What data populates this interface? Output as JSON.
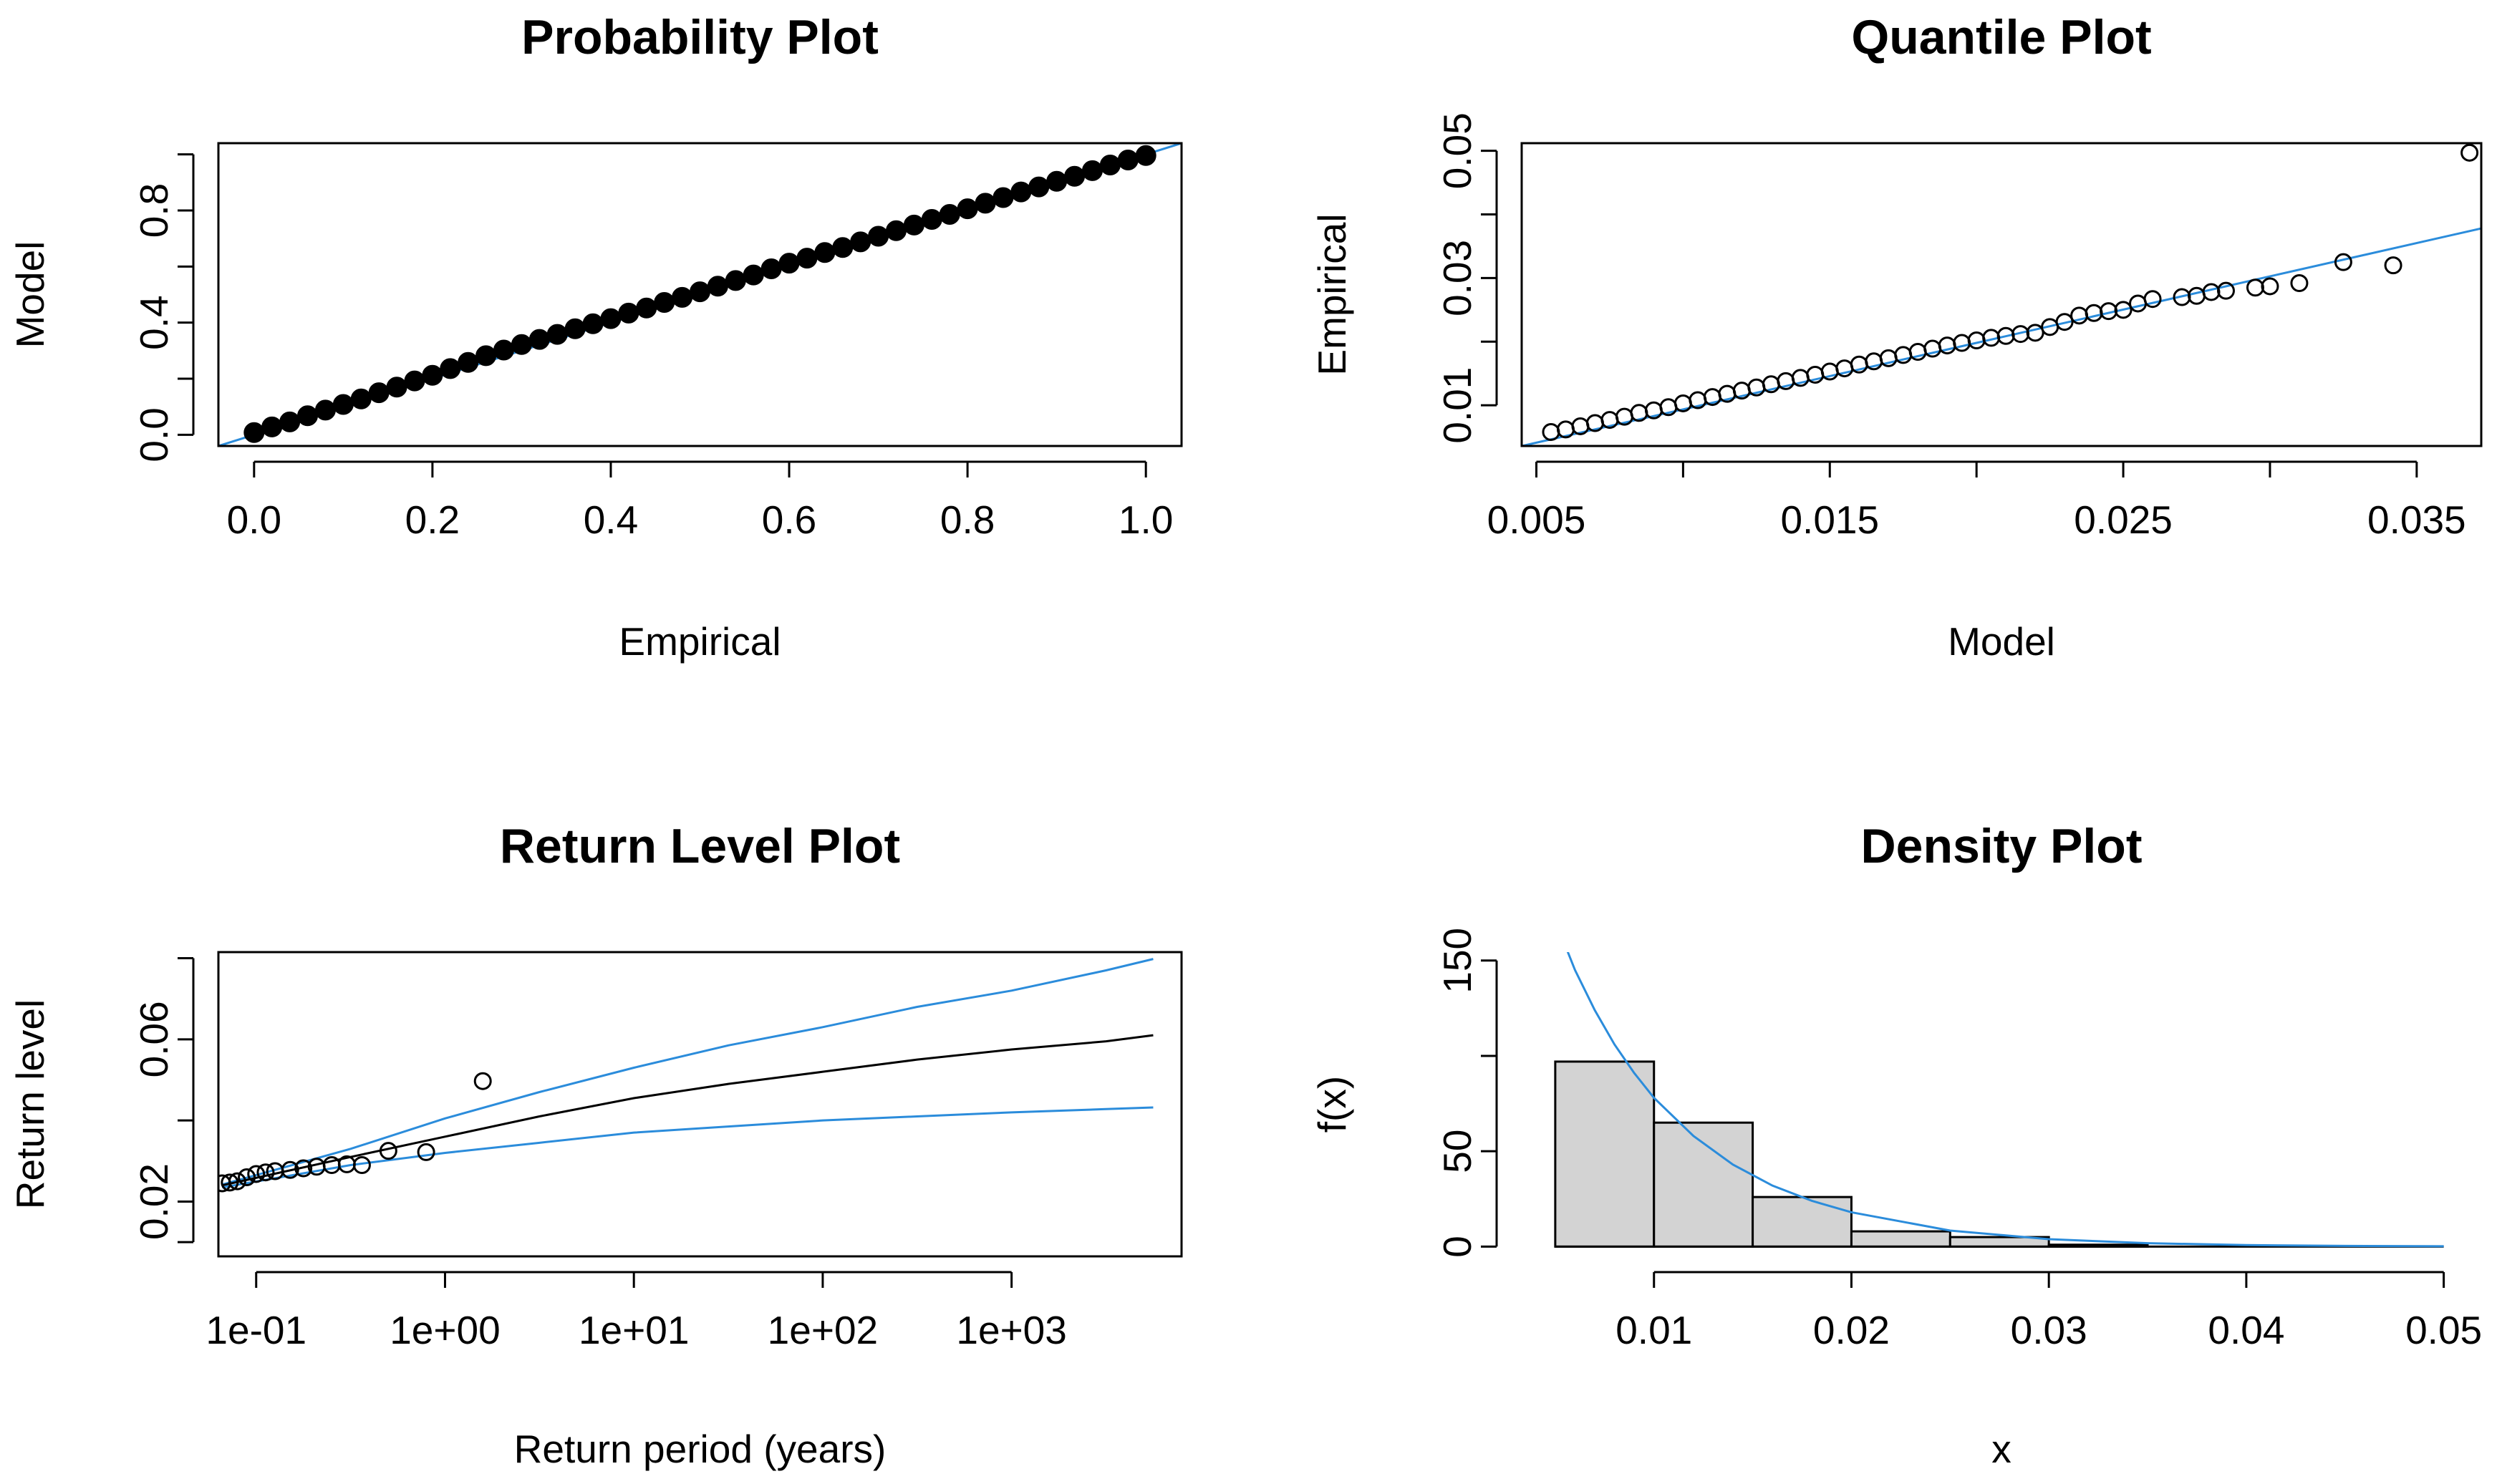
{
  "colors": {
    "fit": "#2b8cdb",
    "points": "#000000",
    "bar_fill": "#d3d3d3",
    "axis": "#000000"
  },
  "chart_data": [
    {
      "id": "prob",
      "type": "scatter",
      "title": "Probability Plot",
      "xlabel": "Empirical",
      "ylabel": "Model",
      "xlim": [
        -0.04,
        1.04
      ],
      "ylim": [
        -0.04,
        1.04
      ],
      "x_ticks": [
        0.0,
        0.2,
        0.4,
        0.6,
        0.8,
        1.0
      ],
      "x_tick_labels": [
        "0.0",
        "0.2",
        "0.4",
        "0.6",
        "0.8",
        "1.0"
      ],
      "y_ticks": [
        0.0,
        0.2,
        0.4,
        0.6,
        0.8,
        1.0
      ],
      "y_tick_labels": [
        "0.0",
        "",
        "0.4",
        "",
        "0.8",
        ""
      ],
      "reference_line": {
        "from": [
          -0.04,
          -0.04
        ],
        "to": [
          1.04,
          1.04
        ]
      },
      "points": [
        [
          0.0,
          0.008
        ],
        [
          0.02,
          0.028
        ],
        [
          0.04,
          0.046
        ],
        [
          0.06,
          0.068
        ],
        [
          0.08,
          0.088
        ],
        [
          0.1,
          0.108
        ],
        [
          0.12,
          0.128
        ],
        [
          0.14,
          0.15
        ],
        [
          0.16,
          0.17
        ],
        [
          0.18,
          0.192
        ],
        [
          0.2,
          0.212
        ],
        [
          0.22,
          0.236
        ],
        [
          0.24,
          0.258
        ],
        [
          0.26,
          0.282
        ],
        [
          0.28,
          0.302
        ],
        [
          0.3,
          0.322
        ],
        [
          0.32,
          0.34
        ],
        [
          0.34,
          0.358
        ],
        [
          0.36,
          0.378
        ],
        [
          0.38,
          0.396
        ],
        [
          0.4,
          0.414
        ],
        [
          0.42,
          0.434
        ],
        [
          0.44,
          0.452
        ],
        [
          0.46,
          0.472
        ],
        [
          0.48,
          0.49
        ],
        [
          0.5,
          0.51
        ],
        [
          0.52,
          0.53
        ],
        [
          0.54,
          0.55
        ],
        [
          0.56,
          0.57
        ],
        [
          0.58,
          0.592
        ],
        [
          0.6,
          0.612
        ],
        [
          0.62,
          0.63
        ],
        [
          0.64,
          0.65
        ],
        [
          0.66,
          0.668
        ],
        [
          0.68,
          0.688
        ],
        [
          0.7,
          0.708
        ],
        [
          0.72,
          0.728
        ],
        [
          0.74,
          0.748
        ],
        [
          0.76,
          0.768
        ],
        [
          0.78,
          0.786
        ],
        [
          0.8,
          0.806
        ],
        [
          0.82,
          0.826
        ],
        [
          0.84,
          0.846
        ],
        [
          0.86,
          0.866
        ],
        [
          0.88,
          0.884
        ],
        [
          0.9,
          0.904
        ],
        [
          0.92,
          0.922
        ],
        [
          0.94,
          0.942
        ],
        [
          0.96,
          0.962
        ],
        [
          0.98,
          0.98
        ],
        [
          1.0,
          0.996
        ]
      ]
    },
    {
      "id": "quant",
      "type": "scatter",
      "title": "Quantile Plot",
      "xlabel": "Model",
      "ylabel": "Empirical",
      "xlim": [
        0.0045,
        0.0372
      ],
      "ylim": [
        0.0036,
        0.0512
      ],
      "x_ticks": [
        0.005,
        0.01,
        0.015,
        0.02,
        0.025,
        0.03,
        0.035
      ],
      "x_tick_labels": [
        "0.005",
        "",
        "0.015",
        "",
        "0.025",
        "",
        "0.035"
      ],
      "y_ticks": [
        0.01,
        0.02,
        0.03,
        0.04,
        0.05
      ],
      "y_tick_labels": [
        "0.01",
        "",
        "0.03",
        "",
        "0.05"
      ],
      "reference_line": {
        "from": [
          0.0045,
          0.0036
        ],
        "to": [
          0.0372,
          0.0378
        ]
      },
      "points": [
        [
          0.0055,
          0.0058
        ],
        [
          0.006,
          0.0062
        ],
        [
          0.0065,
          0.0067
        ],
        [
          0.007,
          0.0072
        ],
        [
          0.0075,
          0.0077
        ],
        [
          0.008,
          0.0082
        ],
        [
          0.0085,
          0.0088
        ],
        [
          0.009,
          0.0092
        ],
        [
          0.0095,
          0.0097
        ],
        [
          0.01,
          0.0103
        ],
        [
          0.0105,
          0.0108
        ],
        [
          0.011,
          0.0113
        ],
        [
          0.0115,
          0.0118
        ],
        [
          0.012,
          0.0123
        ],
        [
          0.0125,
          0.0128
        ],
        [
          0.013,
          0.0133
        ],
        [
          0.0135,
          0.0138
        ],
        [
          0.014,
          0.0143
        ],
        [
          0.0145,
          0.0148
        ],
        [
          0.015,
          0.0153
        ],
        [
          0.0155,
          0.0158
        ],
        [
          0.016,
          0.0164
        ],
        [
          0.0165,
          0.0169
        ],
        [
          0.017,
          0.0174
        ],
        [
          0.0175,
          0.0179
        ],
        [
          0.018,
          0.0184
        ],
        [
          0.0185,
          0.0189
        ],
        [
          0.019,
          0.0194
        ],
        [
          0.0195,
          0.0198
        ],
        [
          0.02,
          0.0202
        ],
        [
          0.0205,
          0.0206
        ],
        [
          0.021,
          0.0209
        ],
        [
          0.0215,
          0.0212
        ],
        [
          0.022,
          0.0214
        ],
        [
          0.0225,
          0.0223
        ],
        [
          0.023,
          0.0231
        ],
        [
          0.0235,
          0.0241
        ],
        [
          0.024,
          0.0245
        ],
        [
          0.0245,
          0.0248
        ],
        [
          0.025,
          0.025
        ],
        [
          0.0255,
          0.026
        ],
        [
          0.026,
          0.0267
        ],
        [
          0.027,
          0.027
        ],
        [
          0.0275,
          0.0272
        ],
        [
          0.028,
          0.0278
        ],
        [
          0.0285,
          0.028
        ],
        [
          0.0295,
          0.0285
        ],
        [
          0.03,
          0.0287
        ],
        [
          0.031,
          0.0292
        ],
        [
          0.0325,
          0.0325
        ],
        [
          0.0342,
          0.032
        ],
        [
          0.0368,
          0.0497
        ]
      ]
    },
    {
      "id": "rl",
      "type": "line",
      "title": "Return Level Plot",
      "xlabel": "Return period (years)",
      "ylabel": "Return level",
      "x_scale": "log10",
      "xlim": [
        -1.2,
        3.9
      ],
      "ylim": [
        0.0065,
        0.0815
      ],
      "x_ticks": [
        -1,
        0,
        1,
        2,
        3
      ],
      "x_tick_labels": [
        "1e-01",
        "1e+00",
        "1e+01",
        "1e+02",
        "1e+03"
      ],
      "y_ticks": [
        0.01,
        0.02,
        0.04,
        0.06,
        0.08
      ],
      "y_tick_labels": [
        "",
        "0.02",
        "",
        "0.06",
        ""
      ],
      "series": [
        {
          "name": "upper",
          "color": "fit",
          "x": [
            -1.18,
            -0.5,
            0,
            0.5,
            1,
            1.5,
            2,
            2.5,
            3,
            3.5,
            3.75
          ],
          "y": [
            0.0242,
            0.033,
            0.0405,
            0.047,
            0.053,
            0.0585,
            0.063,
            0.068,
            0.072,
            0.077,
            0.0798
          ]
        },
        {
          "name": "estimate",
          "color": "points",
          "x": [
            -1.18,
            -0.5,
            0,
            0.5,
            1,
            1.5,
            2,
            2.5,
            3,
            3.5,
            3.75
          ],
          "y": [
            0.024,
            0.031,
            0.036,
            0.041,
            0.0455,
            0.049,
            0.052,
            0.055,
            0.0575,
            0.0595,
            0.061
          ]
        },
        {
          "name": "lower",
          "color": "fit",
          "x": [
            -1.18,
            -0.5,
            0,
            0.5,
            1,
            1.5,
            2,
            2.5,
            3,
            3.5,
            3.75
          ],
          "y": [
            0.0235,
            0.029,
            0.032,
            0.0345,
            0.037,
            0.0385,
            0.04,
            0.041,
            0.042,
            0.0428,
            0.0432
          ]
        }
      ],
      "points": [
        [
          -1.18,
          0.0245
        ],
        [
          -1.14,
          0.0247
        ],
        [
          -1.1,
          0.025
        ],
        [
          -1.05,
          0.026
        ],
        [
          -1.0,
          0.0268
        ],
        [
          -0.95,
          0.0272
        ],
        [
          -0.9,
          0.0275
        ],
        [
          -0.82,
          0.0278
        ],
        [
          -0.75,
          0.0282
        ],
        [
          -0.68,
          0.0286
        ],
        [
          -0.6,
          0.029
        ],
        [
          -0.52,
          0.0292
        ],
        [
          -0.44,
          0.029
        ],
        [
          -0.3,
          0.0325
        ],
        [
          -0.1,
          0.0322
        ],
        [
          0.2,
          0.0497
        ]
      ]
    },
    {
      "id": "dens",
      "type": "bar",
      "title": "Density Plot",
      "xlabel": "x",
      "ylabel": "f(x)",
      "xlim": [
        0.0033,
        0.0519
      ],
      "ylim": [
        -5.1,
        154.4
      ],
      "x_ticks": [
        0.01,
        0.02,
        0.03,
        0.04,
        0.05
      ],
      "x_tick_labels": [
        "0.01",
        "0.02",
        "0.03",
        "0.04",
        "0.05"
      ],
      "y_ticks": [
        0,
        50,
        100,
        150
      ],
      "y_tick_labels": [
        "0",
        "50",
        "",
        "150"
      ],
      "bins": [
        {
          "from": 0.005,
          "to": 0.01,
          "value": 97
        },
        {
          "from": 0.01,
          "to": 0.015,
          "value": 65
        },
        {
          "from": 0.015,
          "to": 0.02,
          "value": 26
        },
        {
          "from": 0.02,
          "to": 0.025,
          "value": 8
        },
        {
          "from": 0.025,
          "to": 0.03,
          "value": 5
        },
        {
          "from": 0.03,
          "to": 0.035,
          "value": 1
        }
      ],
      "curve": {
        "x": [
          0.0055,
          0.006,
          0.007,
          0.008,
          0.009,
          0.01,
          0.012,
          0.014,
          0.016,
          0.018,
          0.02,
          0.025,
          0.03,
          0.035,
          0.04,
          0.045,
          0.05
        ],
        "y": [
          158,
          145,
          124,
          106,
          91,
          78,
          58,
          43,
          32,
          24,
          18,
          8.4,
          3.9,
          1.8,
          0.8,
          0.4,
          0.2
        ]
      }
    }
  ]
}
